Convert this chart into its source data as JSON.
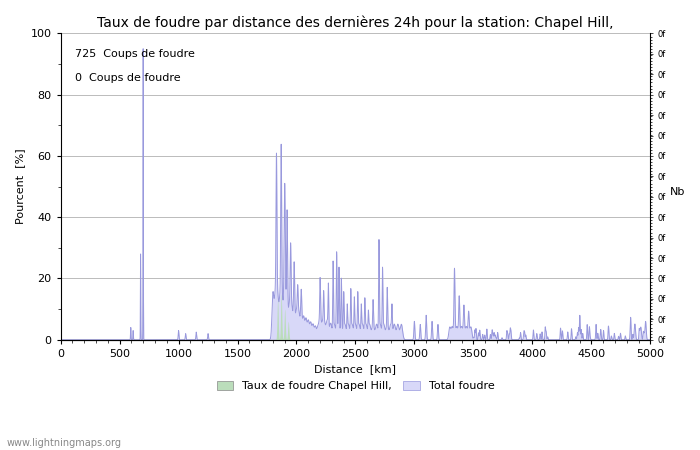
{
  "title": "Taux de foudre par distance des dernières 24h pour la station: Chapel Hill,",
  "xlabel": "Distance  [km]",
  "ylabel": "Pourcent  [%]",
  "ylabel_right": "Nb",
  "annotation_line1": "725  Coups de foudre",
  "annotation_line2": "0  Coups de foudre",
  "legend_label1": "Taux de foudre Chapel Hill,",
  "legend_label2": "Total foudre",
  "watermark": "www.lightningmaps.org",
  "xlim": [
    0,
    5000
  ],
  "ylim": [
    0,
    100
  ],
  "xticks": [
    0,
    500,
    1000,
    1500,
    2000,
    2500,
    3000,
    3500,
    4000,
    4500,
    5000
  ],
  "yticks_left": [
    0,
    20,
    40,
    60,
    80,
    100
  ],
  "bg_color": "#ffffff",
  "grid_color": "#bbbbbb",
  "line_color": "#9999dd",
  "fill_color_green": "#bbddbb",
  "fill_color_blue": "#d8d8f8",
  "title_fontsize": 10,
  "label_fontsize": 8,
  "tick_fontsize": 8,
  "annotation_fontsize": 8
}
